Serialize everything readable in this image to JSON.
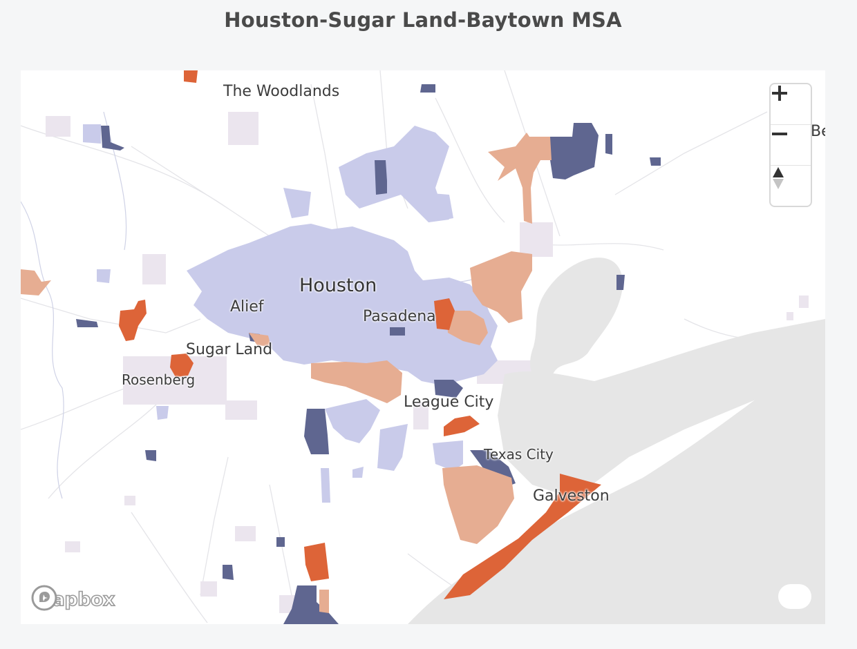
{
  "page": {
    "title": "Houston-Sugar Land-Baytown MSA"
  },
  "map": {
    "cities": {
      "the_woodlands": "The Woodlands",
      "houston": "Houston",
      "alief": "Alief",
      "pasadena": "Pasadena",
      "sugar_land": "Sugar Land",
      "rosenberg": "Rosenberg",
      "league_city": "League City",
      "texas_city": "Texas City",
      "galveston": "Galveston",
      "edge_partial": "Be"
    },
    "colors": {
      "light_purple": "#c9cbea",
      "dark_purple": "#5f6690",
      "light_orange": "#e6ad92",
      "dark_orange": "#dd6438",
      "pale": "#ebe5ee",
      "water": "#e6e6e6"
    }
  },
  "controls": {
    "zoom_in": "+",
    "zoom_out": "−",
    "compass_icon": "compass-icon"
  },
  "branding": {
    "logo_text": "mapbox"
  }
}
